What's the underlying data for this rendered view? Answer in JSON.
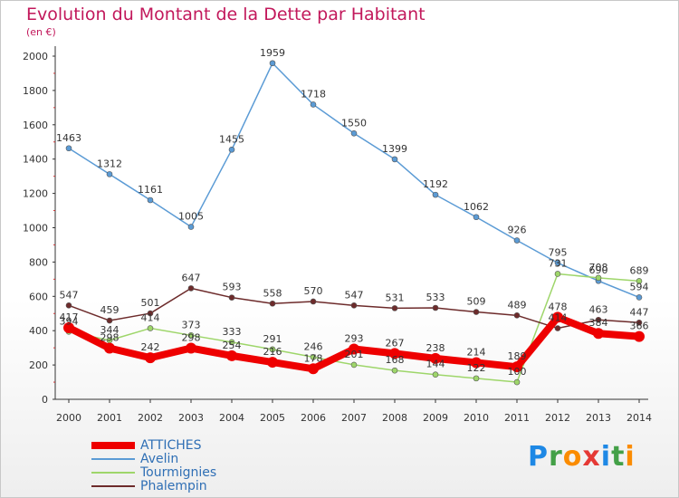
{
  "header": {
    "title": "Evolution du Montant de la Dette par Habitant",
    "subtitle": "(en €)"
  },
  "brand": {
    "letters": [
      "P",
      "r",
      "o",
      "x",
      "i",
      "t",
      "i"
    ],
    "colors": [
      "#1e88e5",
      "#43a047",
      "#fb8c00",
      "#e53935",
      "#1e88e5",
      "#43a047",
      "#fb8c00"
    ]
  },
  "chart_data": {
    "type": "line",
    "x": [
      2000,
      2001,
      2002,
      2003,
      2004,
      2005,
      2006,
      2007,
      2008,
      2009,
      2010,
      2011,
      2012,
      2013,
      2014
    ],
    "ylim": [
      0,
      2000
    ],
    "yticks": [
      0,
      200,
      400,
      600,
      800,
      1000,
      1200,
      1400,
      1600,
      1800,
      2000
    ],
    "grid": false,
    "legend_position": "bottom-left",
    "series": [
      {
        "name": "Avelin",
        "color": "#5b9bd5",
        "values": [
          1463,
          1312,
          1161,
          1005,
          1455,
          1959,
          1718,
          1550,
          1399,
          1192,
          1062,
          926,
          795,
          690,
          594
        ],
        "labels": [
          "1463",
          "1312",
          "1161",
          "1005",
          "1455",
          "1959",
          "1718",
          "1550",
          "1399",
          "1192",
          "1062",
          "926",
          "795",
          "690",
          "594"
        ]
      },
      {
        "name": "Tourmignies",
        "color": "#9ed66a",
        "values": [
          394,
          344,
          414,
          373,
          333,
          291,
          246,
          201,
          168,
          144,
          122,
          100,
          731,
          708,
          689
        ],
        "labels": [
          "394",
          "344",
          "414",
          "373",
          "333",
          "291",
          "246",
          "201",
          "168",
          "144",
          "122",
          "100",
          "731",
          "708",
          "689"
        ]
      },
      {
        "name": "Phalempin",
        "color": "#6d2b2b",
        "values": [
          547,
          459,
          501,
          647,
          593,
          558,
          570,
          547,
          531,
          533,
          509,
          489,
          414,
          463,
          447
        ],
        "labels": [
          "547",
          "459",
          "501",
          "647",
          "593",
          "558",
          "570",
          "547",
          "531",
          "533",
          "509",
          "489",
          "414",
          "463",
          "447"
        ]
      },
      {
        "name": "ATTICHES",
        "color": "#ee0000",
        "values": [
          417,
          298,
          242,
          298,
          254,
          216,
          178,
          293,
          267,
          238,
          214,
          189,
          478,
          384,
          366
        ],
        "labels": [
          "417",
          "298",
          "242",
          "298",
          "254",
          "216",
          "178",
          "293",
          "267",
          "238",
          "214",
          "189",
          "478",
          "384",
          "366"
        ]
      }
    ],
    "legend": [
      {
        "name": "ATTICHES",
        "color": "#ee0000",
        "thickness": 8
      },
      {
        "name": "Avelin",
        "color": "#5b9bd5",
        "thickness": 2
      },
      {
        "name": "Tourmignies",
        "color": "#9ed66a",
        "thickness": 2
      },
      {
        "name": "Phalempin",
        "color": "#6d2b2b",
        "thickness": 2
      }
    ]
  }
}
